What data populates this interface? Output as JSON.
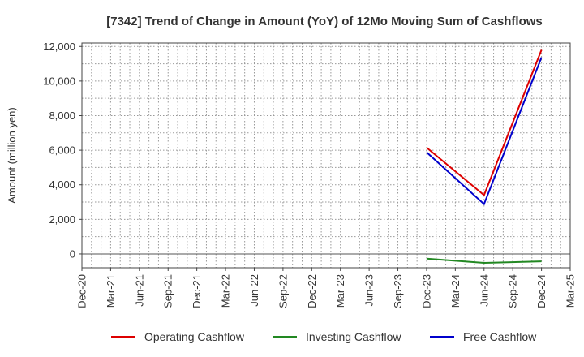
{
  "chart_data": {
    "type": "line",
    "title": "[7342]  Trend of Change in Amount (YoY) of 12Mo Moving Sum of Cashflows",
    "xlabel": "",
    "ylabel": "Amount (million yen)",
    "ylim": [
      -800,
      12200
    ],
    "yticks": [
      0,
      2000,
      4000,
      6000,
      8000,
      10000,
      12000
    ],
    "ytick_labels": [
      "0",
      "2,000",
      "4,000",
      "6,000",
      "8,000",
      "10,000",
      "12,000"
    ],
    "x_categories": [
      "Dec-20",
      "Mar-21",
      "Jun-21",
      "Sep-21",
      "Dec-21",
      "Mar-22",
      "Jun-22",
      "Sep-22",
      "Dec-22",
      "Mar-23",
      "Jun-23",
      "Sep-23",
      "Dec-23",
      "Mar-24",
      "Jun-24",
      "Sep-24",
      "Dec-24",
      "Mar-25"
    ],
    "grid": true,
    "legend_position": "bottom",
    "series": [
      {
        "name": "Operating Cashflow",
        "color": "#dd0000",
        "points": [
          [
            "Dec-23",
            6150
          ],
          [
            "Jun-24",
            3400
          ],
          [
            "Dec-24",
            11800
          ]
        ]
      },
      {
        "name": "Investing Cashflow",
        "color": "#228822",
        "points": [
          [
            "Dec-23",
            -270
          ],
          [
            "Jun-24",
            -520
          ],
          [
            "Dec-24",
            -430
          ]
        ]
      },
      {
        "name": "Free Cashflow",
        "color": "#0000cc",
        "points": [
          [
            "Dec-23",
            5880
          ],
          [
            "Jun-24",
            2880
          ],
          [
            "Dec-24",
            11370
          ]
        ]
      }
    ]
  }
}
